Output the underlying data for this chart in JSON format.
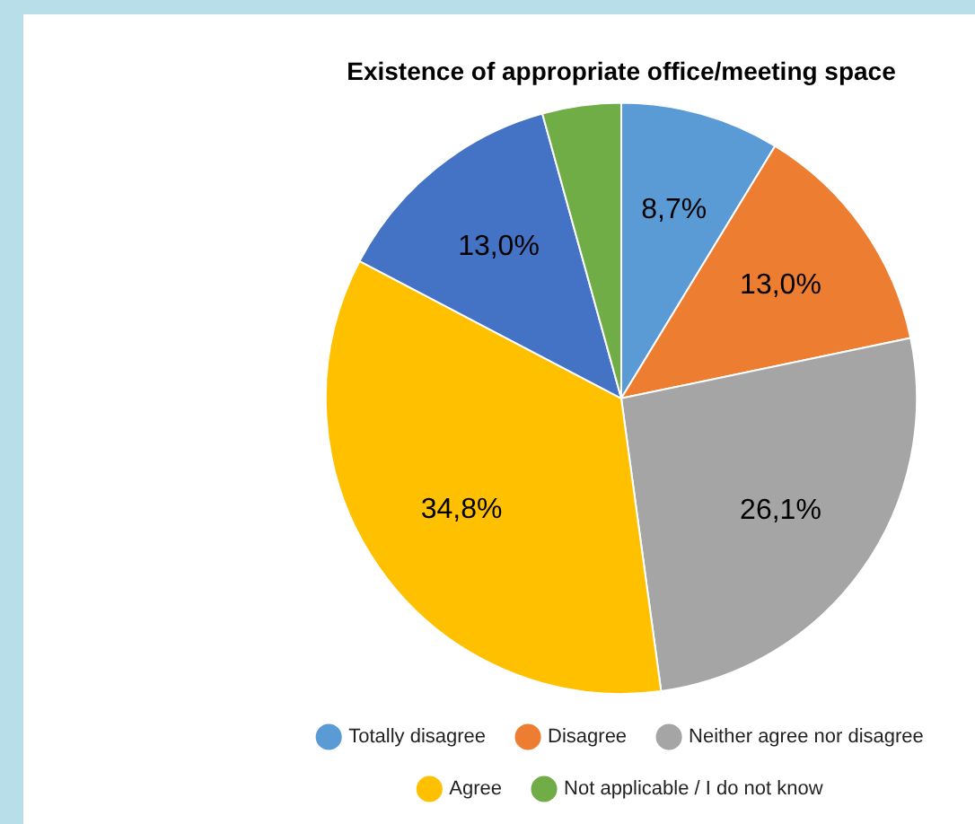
{
  "chart_data": {
    "type": "pie",
    "title": "Existence of appropriate office/meeting space",
    "categories": [
      "Totally disagree",
      "Disagree",
      "Neither agree nor disagree",
      "Agree",
      null,
      "Not applicable / I do not know"
    ],
    "values": [
      8.7,
      13.0,
      26.1,
      34.8,
      13.0,
      4.3
    ],
    "value_labels": [
      "8,7%",
      "13,0%",
      "26,1%",
      "34,8%",
      "13,0%",
      null
    ],
    "colors": [
      "#5b9bd5",
      "#ed7d31",
      "#a5a5a5",
      "#ffc000",
      "#4472c4",
      "#70ad47"
    ],
    "legend": "bottom"
  }
}
